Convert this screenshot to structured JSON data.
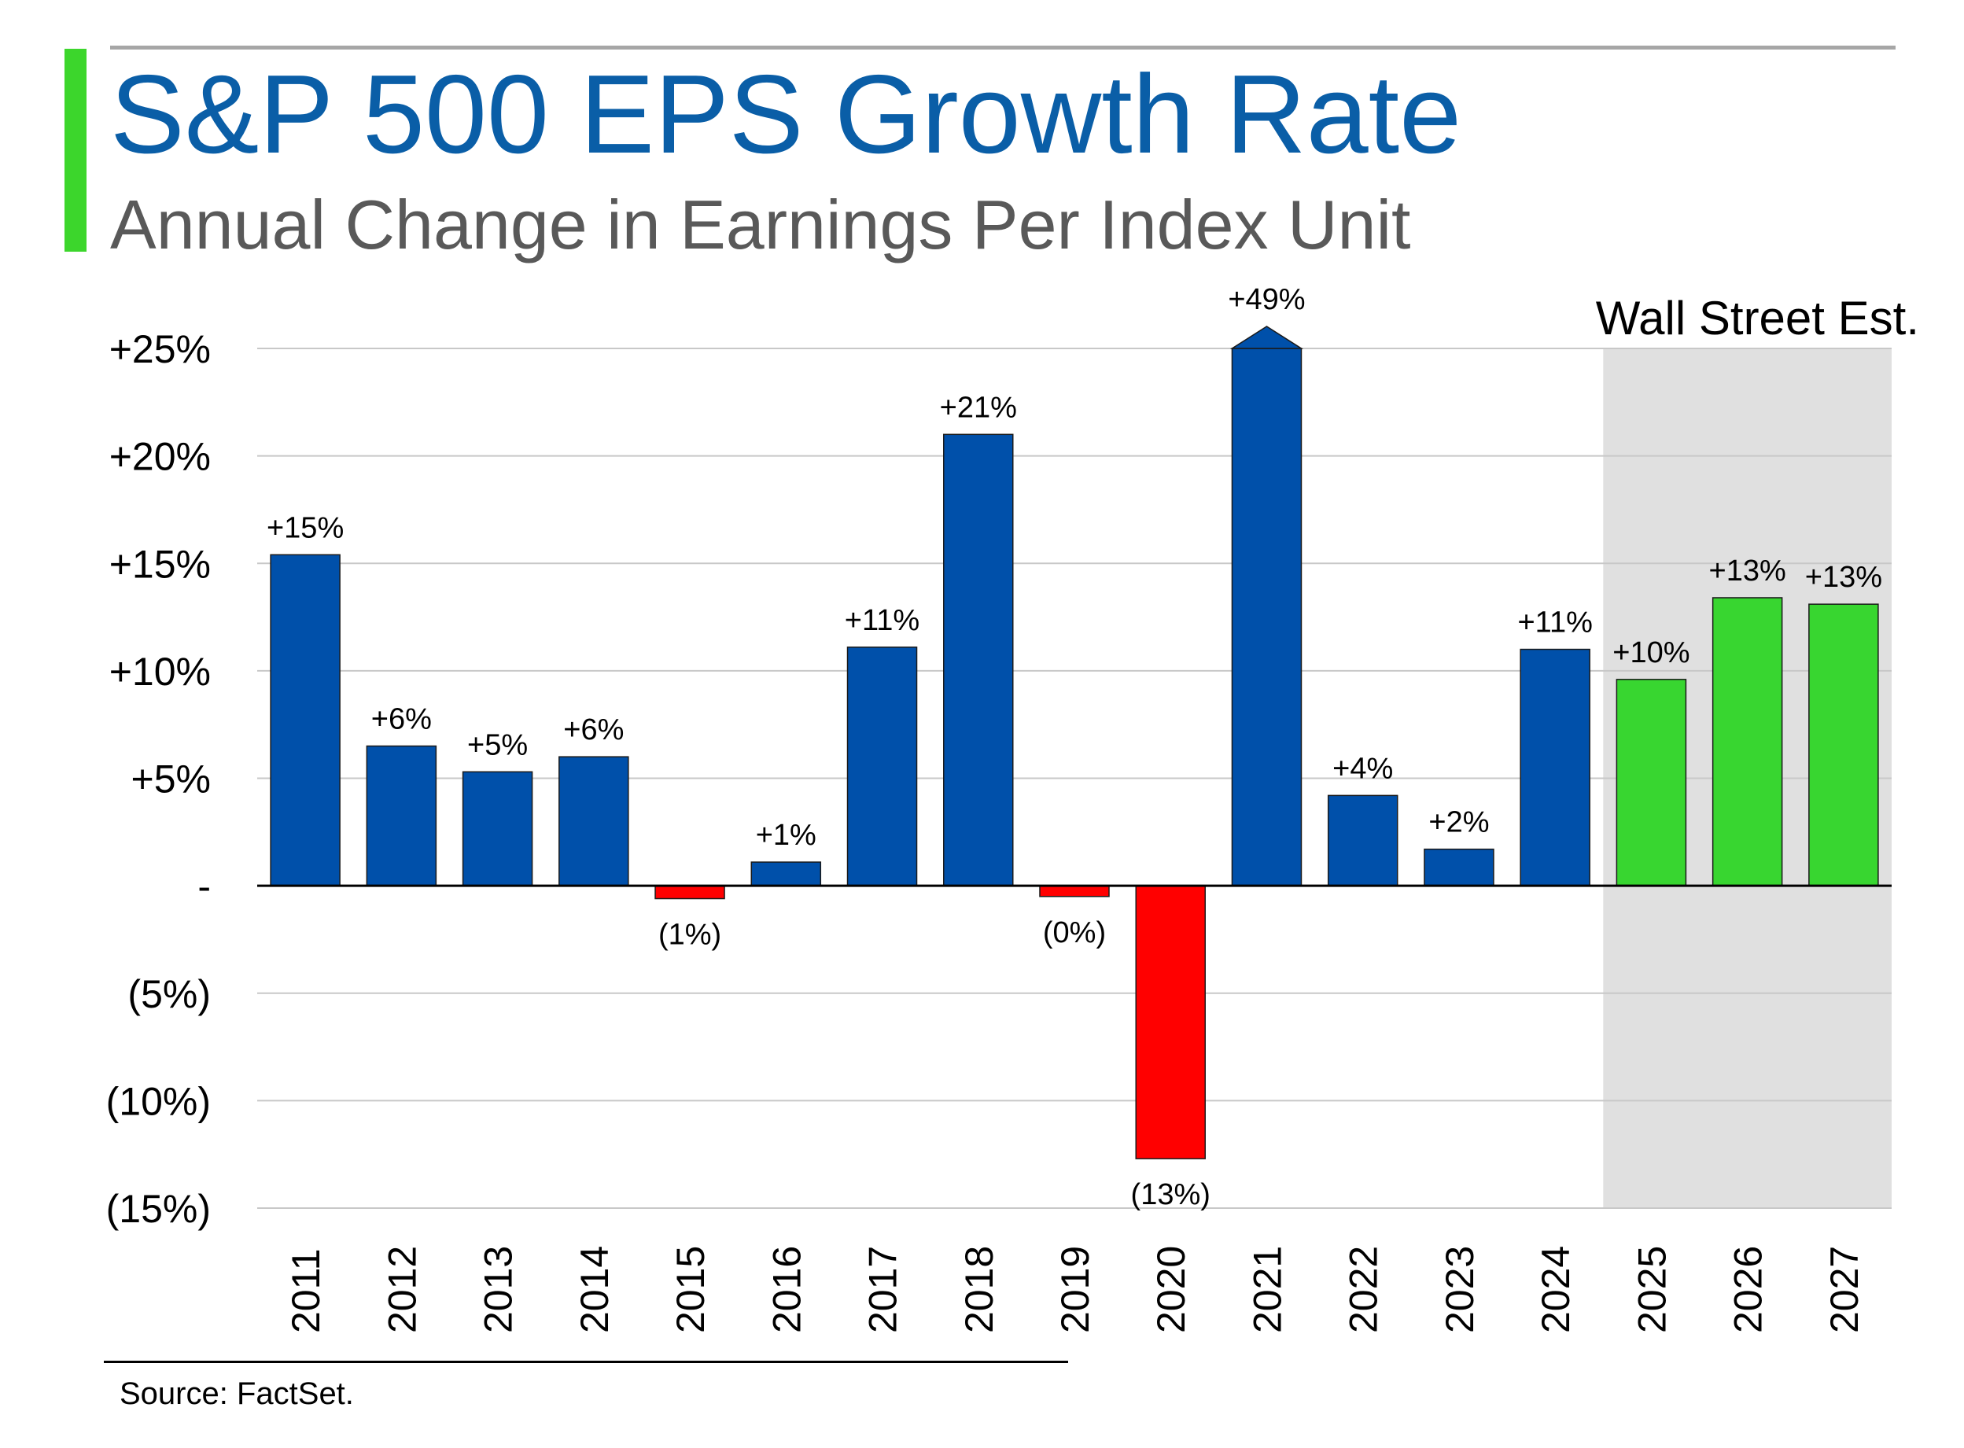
{
  "title": "S&P 500 EPS Growth Rate",
  "subtitle": "Annual Change in Earnings Per Index Unit",
  "source": "Source: FactSet.",
  "colors": {
    "accent": "#3cd62c",
    "title": "#0a5ea7",
    "actual_positive": "#0050aa",
    "actual_negative": "#ff0000",
    "estimate": "#38d630",
    "estimate_region": "#e0e0e0"
  },
  "chart_data": {
    "type": "bar",
    "title": "S&P 500 EPS Growth Rate",
    "subtitle": "Annual Change in Earnings Per Index Unit",
    "xlabel": "",
    "ylabel": "",
    "ylim": [
      -15,
      25
    ],
    "grid": true,
    "yticks": [
      {
        "value": 25,
        "label": "+25%"
      },
      {
        "value": 20,
        "label": "+20%"
      },
      {
        "value": 15,
        "label": "+15%"
      },
      {
        "value": 10,
        "label": "+10%"
      },
      {
        "value": 5,
        "label": "+5%"
      },
      {
        "value": 0,
        "label": "-"
      },
      {
        "value": -5,
        "label": "(5%)"
      },
      {
        "value": -10,
        "label": "(10%)"
      },
      {
        "value": -15,
        "label": "(15%)"
      }
    ],
    "categories": [
      "2011",
      "2012",
      "2013",
      "2014",
      "2015",
      "2016",
      "2017",
      "2018",
      "2019",
      "2020",
      "2021",
      "2022",
      "2023",
      "2024",
      "2025",
      "2026",
      "2027"
    ],
    "values": [
      15.4,
      6.5,
      5.3,
      6.0,
      -0.6,
      1.1,
      11.1,
      21.0,
      -0.5,
      -12.7,
      49.0,
      4.2,
      1.7,
      11.0,
      9.6,
      13.4,
      13.1
    ],
    "data_labels": [
      "+15%",
      "+6%",
      "+5%",
      "+6%",
      "(1%)",
      "+1%",
      "+11%",
      "+21%",
      "(0%)",
      "(13%)",
      "+49%",
      "+4%",
      "+2%",
      "+11%",
      "+10%",
      "+13%",
      "+13%"
    ],
    "estimate_start": "2025",
    "estimate_label": "Wall Street Est.",
    "clipped_categories": [
      "2021"
    ]
  }
}
